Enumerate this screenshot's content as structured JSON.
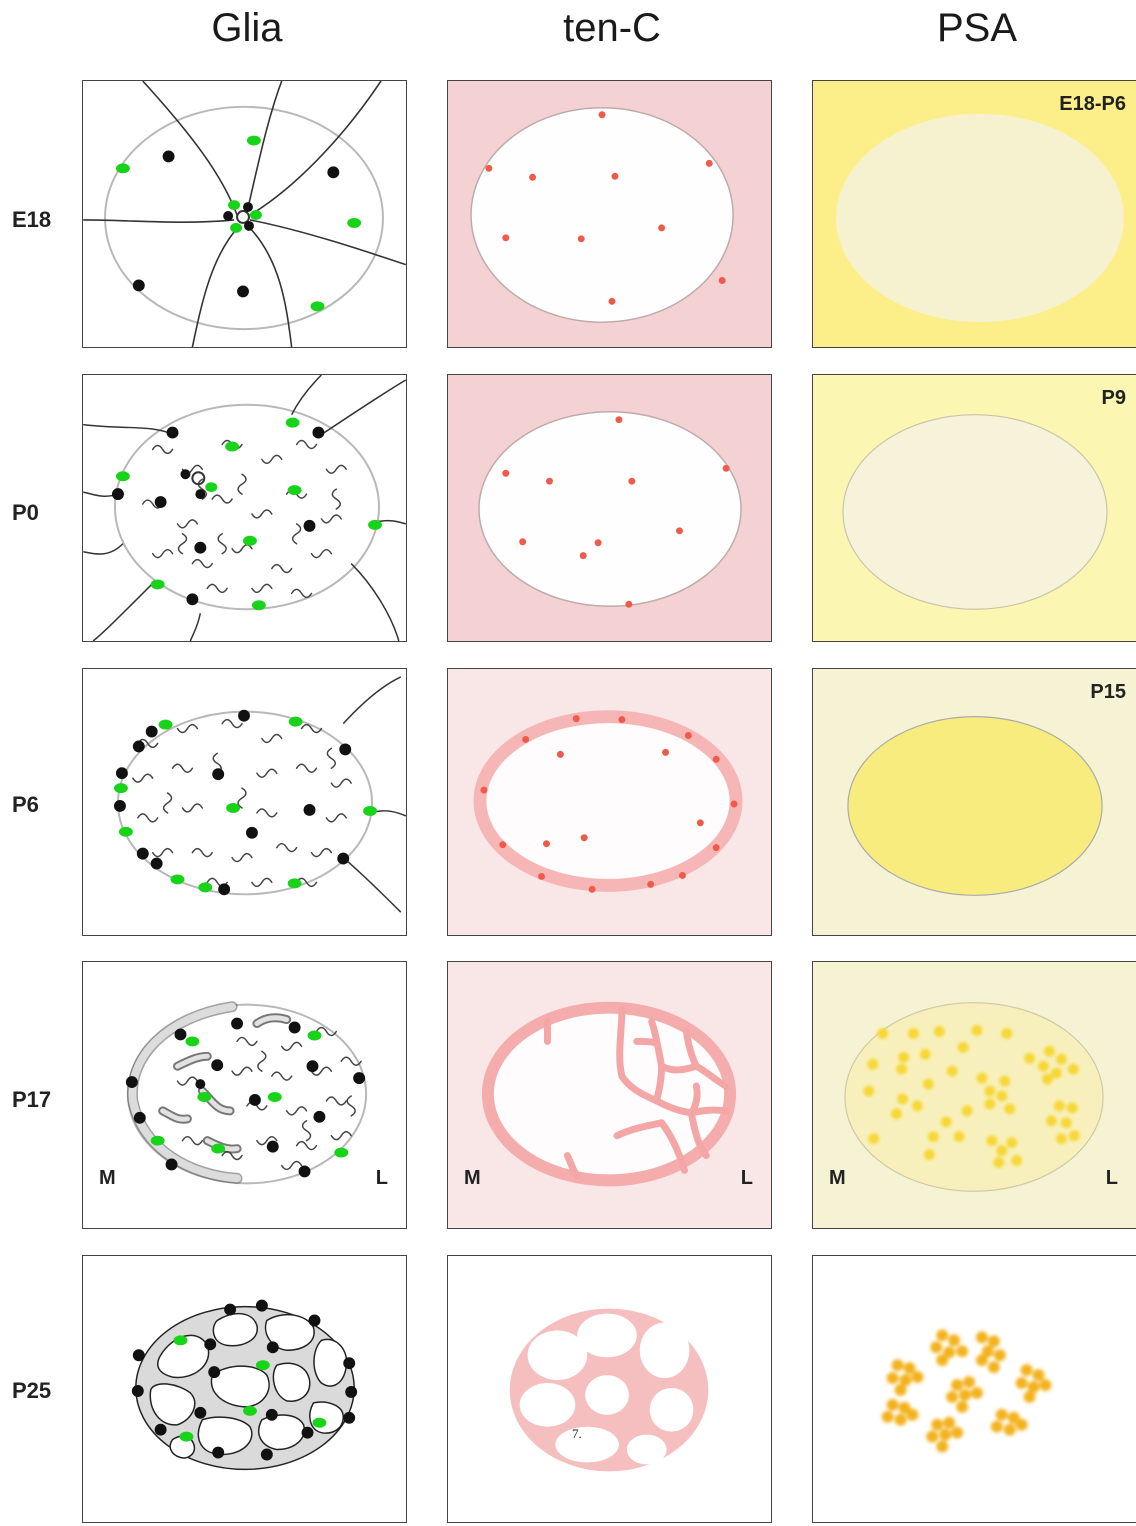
{
  "columns": [
    "Glia",
    "ten-C",
    "PSA"
  ],
  "rows": [
    "E18",
    "P0",
    "P6",
    "P17",
    "P25"
  ],
  "psa_stage_labels": [
    "E18-P6",
    "P9",
    "P15"
  ],
  "axis_markers": {
    "medial": "M",
    "lateral": "L"
  },
  "footnote": "7.",
  "colors": {
    "astrocyte_marker": "#18d418",
    "glial_cell": "#111111",
    "tenc_dot": "#f05a4a",
    "tenc_band": "#f4a6a6",
    "psa_yellow": "#f9ec7e",
    "psa_cluster": "#f3b21c"
  }
}
